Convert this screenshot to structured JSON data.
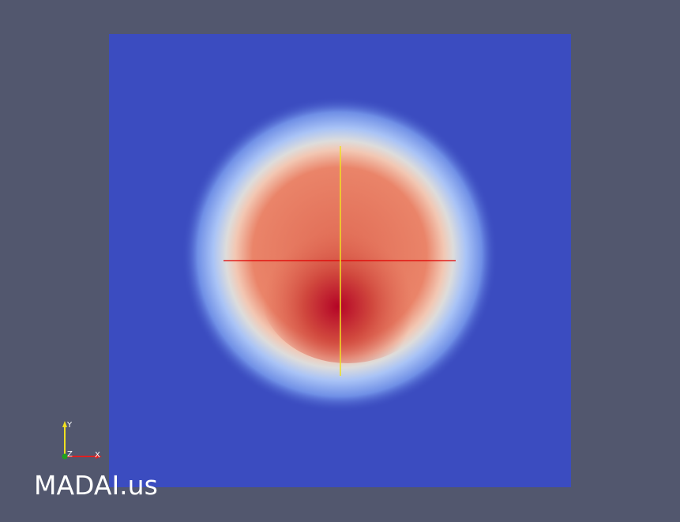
{
  "watermark": "MADAI.us",
  "orientation_axes": {
    "x": "X",
    "y": "Y",
    "z": "Z"
  }
}
